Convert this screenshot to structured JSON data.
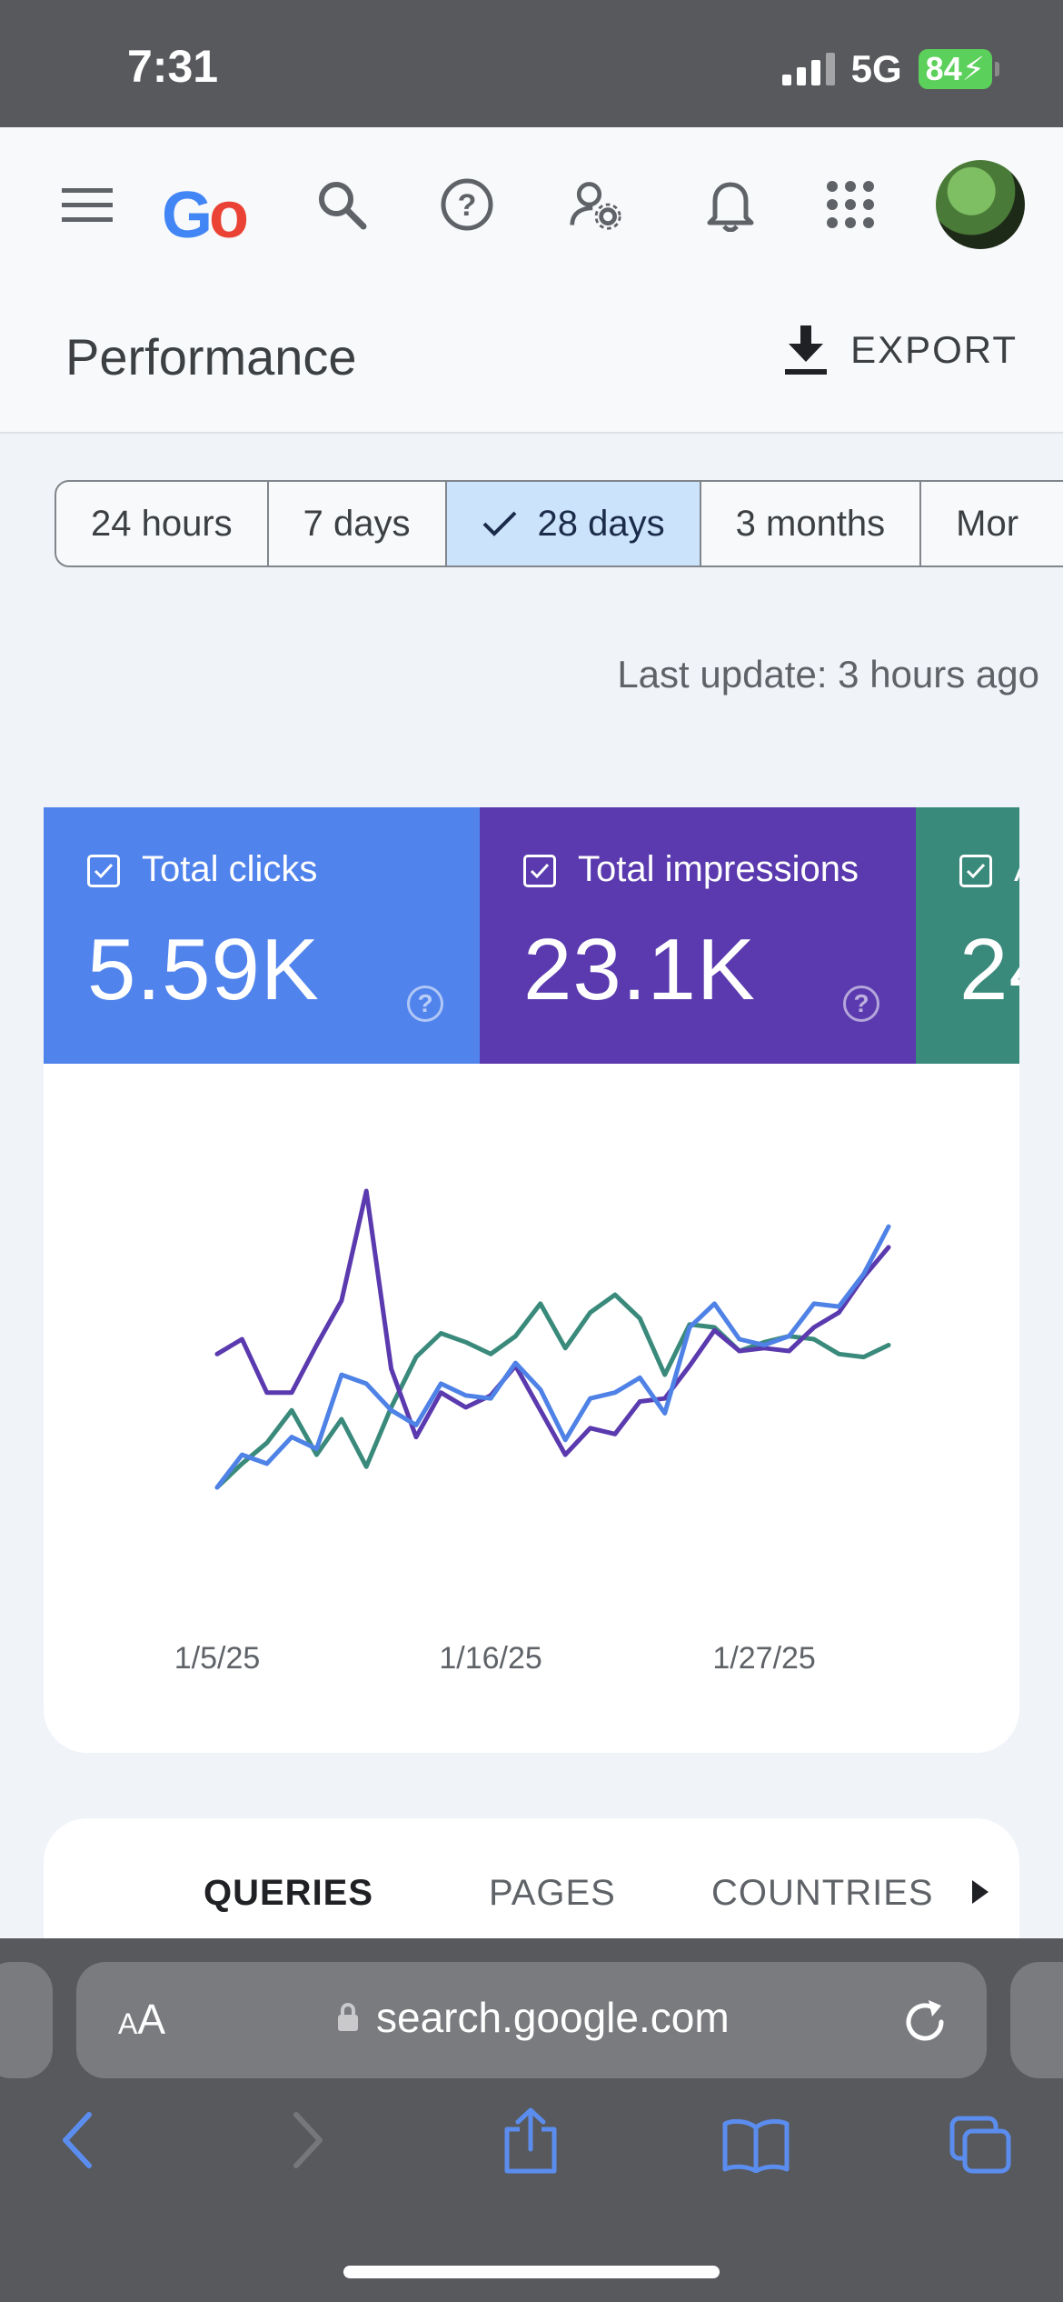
{
  "status_bar": {
    "time": "7:31",
    "network": "5G",
    "battery": "84"
  },
  "app_bar": {
    "logo_letters": [
      "G",
      "o"
    ],
    "icons": [
      "menu-icon",
      "search-icon",
      "help-icon",
      "manage-users-icon",
      "notifications-icon",
      "apps-icon",
      "avatar"
    ]
  },
  "page": {
    "title": "Performance",
    "export_label": "EXPORT"
  },
  "date_range": {
    "options": [
      "24 hours",
      "7 days",
      "28 days",
      "3 months",
      "Mor"
    ],
    "selected": "28 days"
  },
  "last_update": "Last update: 3 hours ago",
  "metrics": [
    {
      "label": "Total clicks",
      "value": "5.59K",
      "color": "#5083ec",
      "checked": true
    },
    {
      "label": "Total impressions",
      "value": "23.1K",
      "color": "#5a3aae",
      "checked": true
    },
    {
      "label": "A",
      "value": "24",
      "color": "#3a8a7c",
      "checked": true
    }
  ],
  "chart_data": {
    "type": "line",
    "x": [
      "1/5/25",
      "1/6/25",
      "1/7/25",
      "1/8/25",
      "1/9/25",
      "1/10/25",
      "1/11/25",
      "1/12/25",
      "1/13/25",
      "1/14/25",
      "1/15/25",
      "1/16/25",
      "1/17/25",
      "1/18/25",
      "1/19/25",
      "1/20/25",
      "1/21/25",
      "1/22/25",
      "1/23/25",
      "1/24/25",
      "1/25/25",
      "1/26/25",
      "1/27/25",
      "1/28/25",
      "1/29/25",
      "1/30/25",
      "1/31/25",
      "2/1/25"
    ],
    "x_tick_labels": [
      "1/5/25",
      "1/16/25",
      "1/27/25"
    ],
    "y_unit": "normalized",
    "series": [
      {
        "name": "Total clicks",
        "color": "#4f82e6",
        "values": [
          0.0,
          0.11,
          0.08,
          0.17,
          0.13,
          0.38,
          0.35,
          0.26,
          0.21,
          0.35,
          0.31,
          0.3,
          0.42,
          0.33,
          0.16,
          0.3,
          0.32,
          0.37,
          0.25,
          0.54,
          0.62,
          0.5,
          0.48,
          0.51,
          0.62,
          0.61,
          0.72,
          0.88
        ]
      },
      {
        "name": "Total impressions",
        "color": "#5a3aae",
        "values": [
          0.45,
          0.5,
          0.32,
          0.32,
          0.48,
          0.63,
          1.0,
          0.4,
          0.17,
          0.32,
          0.27,
          0.31,
          0.41,
          0.26,
          0.11,
          0.2,
          0.18,
          0.29,
          0.3,
          0.41,
          0.53,
          0.46,
          0.47,
          0.46,
          0.54,
          0.59,
          0.71,
          0.81
        ]
      },
      {
        "name": "A",
        "color": "#3a8a7c",
        "values": [
          0.0,
          0.08,
          0.15,
          0.26,
          0.11,
          0.23,
          0.07,
          0.27,
          0.44,
          0.52,
          0.49,
          0.45,
          0.51,
          0.62,
          0.47,
          0.59,
          0.65,
          0.57,
          0.38,
          0.55,
          0.54,
          0.46,
          0.49,
          0.51,
          0.5,
          0.45,
          0.44,
          0.48
        ]
      }
    ],
    "grid": false,
    "legend": "none"
  },
  "tabs": {
    "items": [
      "QUERIES",
      "PAGES",
      "COUNTRIES"
    ],
    "active": "QUERIES"
  },
  "browser": {
    "text_size_label_small": "A",
    "text_size_label_big": "A",
    "url": "search.google.com"
  }
}
